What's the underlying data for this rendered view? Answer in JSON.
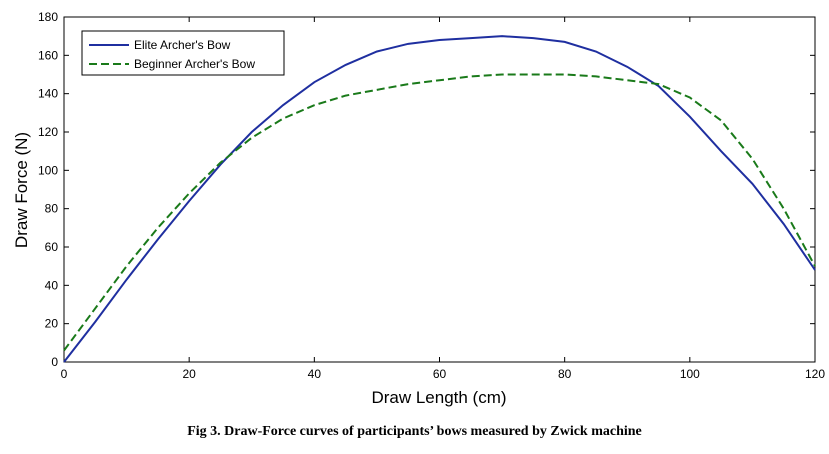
{
  "caption": "Fig 3. Draw-Force curves of participants’ bows measured by Zwick machine",
  "chart_data": {
    "type": "line",
    "xlabel": "Draw Length (cm)",
    "ylabel": "Draw Force (N)",
    "xlim": [
      0,
      120
    ],
    "ylim": [
      0,
      180
    ],
    "xticks": [
      0,
      20,
      40,
      60,
      80,
      100,
      120
    ],
    "yticks": [
      0,
      20,
      40,
      60,
      80,
      100,
      120,
      140,
      160,
      180
    ],
    "grid": false,
    "legend_position": "top-left",
    "series": [
      {
        "name": "Elite Archer's Bow",
        "color": "#1f2fa0",
        "style": "solid",
        "x": [
          0,
          5,
          10,
          15,
          20,
          25,
          30,
          35,
          40,
          45,
          50,
          55,
          60,
          65,
          70,
          75,
          80,
          85,
          90,
          95,
          100,
          105,
          110,
          115,
          120
        ],
        "y": [
          0,
          21,
          43,
          64,
          84,
          103,
          120,
          134,
          146,
          155,
          162,
          166,
          168,
          169,
          170,
          169,
          167,
          162,
          154,
          144,
          128,
          110,
          93,
          72,
          48
        ]
      },
      {
        "name": "Beginner Archer's Bow",
        "color": "#1a7a1a",
        "style": "dashed",
        "x": [
          0,
          5,
          10,
          15,
          20,
          25,
          30,
          35,
          40,
          45,
          50,
          55,
          60,
          65,
          70,
          75,
          80,
          85,
          90,
          95,
          100,
          105,
          110,
          115,
          120
        ],
        "y": [
          6,
          28,
          50,
          70,
          88,
          104,
          117,
          127,
          134,
          139,
          142,
          145,
          147,
          149,
          150,
          150,
          150,
          149,
          147,
          145,
          138,
          126,
          106,
          80,
          50
        ]
      }
    ]
  }
}
